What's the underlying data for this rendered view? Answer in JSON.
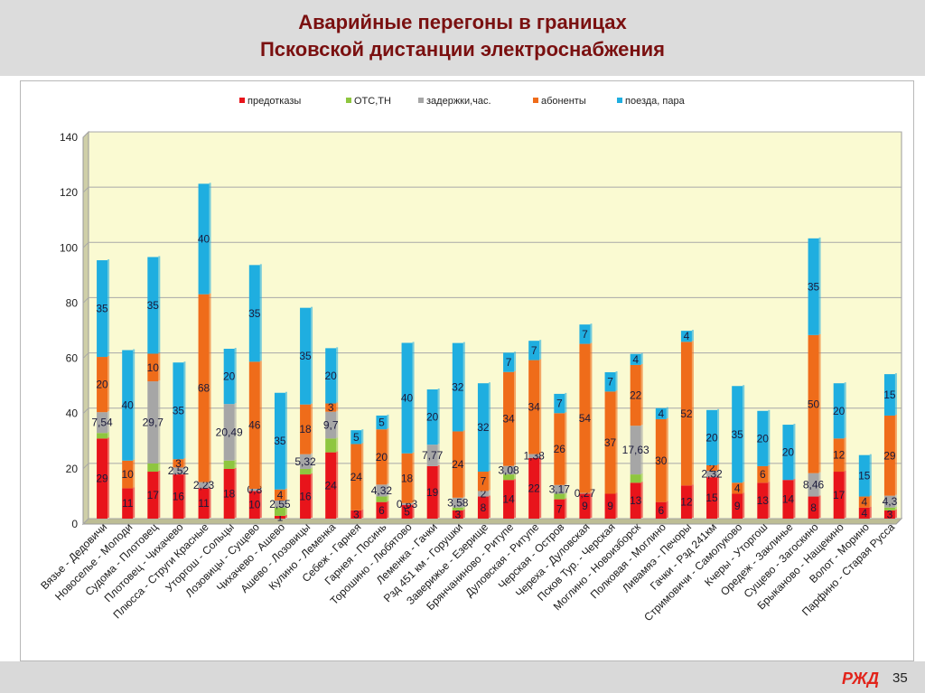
{
  "header": {
    "title_line1": "Аварийные перегоны  в границах",
    "title_line2": "Псковской дистанции электроснабжения"
  },
  "footer": {
    "page_number": "35",
    "logo_text": "РЖД"
  },
  "colors": {
    "series": [
      "#e8141b",
      "#8ec63f",
      "#a6a6a6",
      "#ef6c1a",
      "#1faee0"
    ],
    "plot_bg": "#fafad2",
    "header_bg": "#dcdcdc",
    "title": "#7a1010"
  },
  "chart_data": {
    "type": "bar",
    "stacked": true,
    "title": "",
    "xlabel": "",
    "ylabel": "",
    "ylim": [
      0,
      140
    ],
    "yticks": [
      0,
      20,
      40,
      60,
      80,
      100,
      120,
      140
    ],
    "grid": true,
    "legend_position": "top",
    "categories": [
      "Вязье - Дедовичи",
      "Новоселье - Молоди",
      "Судома - Плотовец",
      "Плотовец - Чихачево",
      "Плюсса - Струги Красные",
      "Уторгош - Сольцы",
      "Лозовицы - Сущево",
      "Чихачево - Ашево",
      "Ашево - Лозовицы",
      "Кулино - Леменка",
      "Себеж - Гарнея",
      "Гарнея - Посинь",
      "Торошино - Любятово",
      "Леменка - Гачки",
      "Рзд 451 км - Горушки",
      "Заверижье - Езерище",
      "Брянчаниново - Ритупе",
      "Дуловская - Ритупе",
      "Черская - Остров",
      "Череха - Дуловская",
      "Псков Тур. - Черская",
      "Моглино - Новоизборск",
      "Полковая - Моглино",
      "Ливамяэ - Печоры",
      "Гачки - Рзд 241км",
      "Стримовичи - Самолуково",
      "Кчеры - Уторгош",
      "Оредеж - Заклинье",
      "Сущево - Загоскино",
      "Брыканово - Нащекино",
      "Волот - Морино",
      "Парфино - Старая Русса"
    ],
    "series": [
      {
        "name": "предотказы",
        "values": [
          29,
          11,
          17,
          16,
          11,
          18,
          10,
          1,
          16,
          24,
          3,
          6,
          5,
          19,
          3,
          8,
          14,
          22,
          7,
          9,
          9,
          13,
          6,
          12,
          15,
          9,
          13,
          14,
          8,
          17,
          4,
          3
        ],
        "labels": [
          "29",
          "11",
          "17",
          "16",
          "11",
          "18",
          "10",
          "1",
          "16",
          "24",
          "3",
          "6",
          "5",
          "19",
          "3",
          "8",
          "14",
          "22",
          "7",
          "9",
          "9",
          "13",
          "6",
          "12",
          "15",
          "9",
          "13",
          "14",
          "8",
          "17",
          "4",
          "3"
        ]
      },
      {
        "name": "ОТС,ТН",
        "values": [
          2,
          0,
          3,
          0,
          0,
          3,
          0,
          3,
          2,
          5,
          0,
          2,
          0,
          0,
          1,
          0,
          2,
          0,
          2,
          0,
          0,
          3,
          0,
          0,
          0,
          0,
          0,
          0,
          0,
          0,
          0,
          1
        ],
        "labels": [
          "",
          "",
          "",
          "",
          "",
          "",
          "",
          "",
          "",
          "",
          "",
          "",
          "",
          "",
          "",
          "",
          "",
          "",
          "",
          "",
          "",
          "",
          "",
          "",
          "",
          "",
          "",
          "",
          "",
          "",
          "",
          ""
        ]
      },
      {
        "name": "задержки,час.",
        "values": [
          7.54,
          0,
          29.7,
          2.52,
          2.23,
          20.49,
          0.8,
          2.55,
          5.32,
          9.7,
          0,
          4.32,
          0.63,
          7.77,
          3.58,
          2,
          3.08,
          1.38,
          3.17,
          0.27,
          0,
          17.63,
          0,
          0,
          2.32,
          0,
          0,
          0,
          8.46,
          0,
          0,
          4.3
        ],
        "labels": [
          "7,54",
          "",
          "29,7",
          "2,52",
          "2,23",
          "20,49",
          "0,8",
          "2,55",
          "5,32",
          "9,7",
          "",
          "4,32",
          "0,63",
          "7,77",
          "3,58",
          "2",
          "3,08",
          "1,38",
          "3,17",
          "0,27",
          "",
          "17,63",
          "",
          "",
          "2,32",
          "",
          "",
          "",
          "8,46",
          "",
          "",
          "4,3"
        ]
      },
      {
        "name": "абоненты",
        "values": [
          20,
          10,
          10,
          3,
          68,
          0,
          46,
          4,
          18,
          3,
          24,
          20,
          18,
          0,
          24,
          7,
          34,
          34,
          26,
          54,
          37,
          22,
          30,
          52,
          2,
          4,
          6,
          0,
          50,
          12,
          4,
          29
        ],
        "labels": [
          "20",
          "10",
          "10",
          "3",
          "68",
          "",
          "46",
          "4",
          "18",
          "3",
          "24",
          "20",
          "18",
          "",
          "24",
          "7",
          "34",
          "34",
          "26",
          "54",
          "37",
          "22",
          "30",
          "52",
          "2",
          "4",
          "6",
          "",
          "50",
          "12",
          "4",
          "29"
        ]
      },
      {
        "name": "поезда, пара",
        "values": [
          35,
          40,
          35,
          35,
          40,
          20,
          35,
          35,
          35,
          20,
          5,
          5,
          40,
          20,
          32,
          32,
          7,
          7,
          7,
          7,
          7,
          4,
          4,
          4,
          20,
          35,
          20,
          20,
          35,
          20,
          15,
          15
        ],
        "labels": [
          "35",
          "40",
          "35",
          "35",
          "40",
          "20",
          "35",
          "35",
          "35",
          "20",
          "5",
          "5",
          "40",
          "20",
          "32",
          "32",
          "7",
          "7",
          "7",
          "7",
          "7",
          "4",
          "4",
          "4",
          "20",
          "35",
          "20",
          "20",
          "35",
          "20",
          "15",
          "15"
        ]
      }
    ]
  }
}
